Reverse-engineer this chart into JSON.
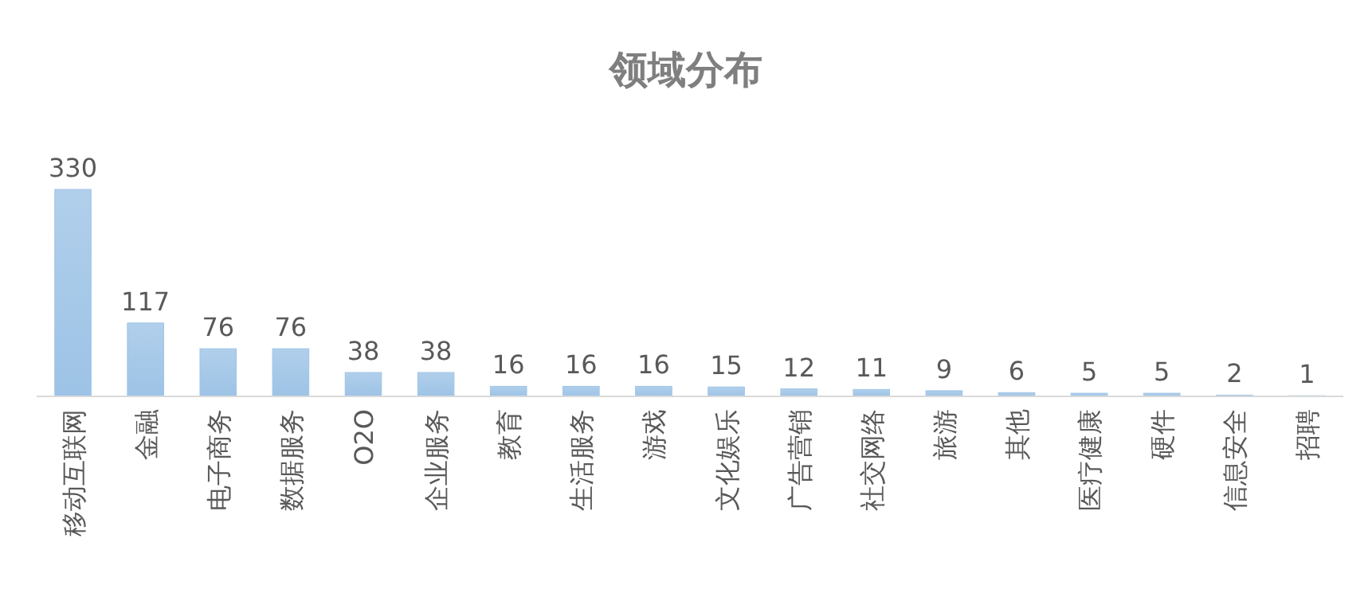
{
  "chart_data": {
    "type": "bar",
    "title": "领域分布",
    "categories": [
      "移动互联网",
      "金融",
      "电子商务",
      "数据服务",
      "O2O",
      "企业服务",
      "教育",
      "生活服务",
      "游戏",
      "文化娱乐",
      "广告营销",
      "社交网络",
      "旅游",
      "其他",
      "医疗健康",
      "硬件",
      "信息安全",
      "招聘"
    ],
    "values": [
      330,
      117,
      76,
      76,
      38,
      38,
      16,
      16,
      16,
      15,
      12,
      11,
      9,
      6,
      5,
      5,
      2,
      1
    ],
    "color": "#9dc3e6",
    "data_labels": true
  }
}
